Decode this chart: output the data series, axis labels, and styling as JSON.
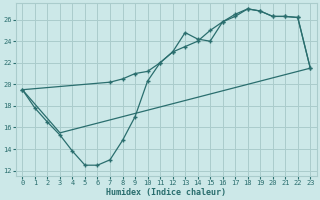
{
  "xlabel": "Humidex (Indice chaleur)",
  "bg_color": "#cce8e8",
  "grid_color": "#aacccc",
  "line_color": "#2a6e6e",
  "xlim": [
    -0.5,
    23.5
  ],
  "ylim": [
    11.5,
    27.5
  ],
  "xticks": [
    0,
    1,
    2,
    3,
    4,
    5,
    6,
    7,
    8,
    9,
    10,
    11,
    12,
    13,
    14,
    15,
    16,
    17,
    18,
    19,
    20,
    21,
    22,
    23
  ],
  "yticks": [
    12,
    14,
    16,
    18,
    20,
    22,
    24,
    26
  ],
  "line1_x": [
    0,
    1,
    2,
    3,
    4,
    5,
    6,
    7,
    8,
    9,
    10,
    11,
    12,
    13,
    14,
    15,
    16,
    17,
    18,
    19,
    20,
    21,
    22,
    23
  ],
  "line1_y": [
    19.5,
    17.8,
    16.5,
    15.3,
    13.8,
    12.5,
    12.5,
    13.0,
    14.8,
    17.0,
    20.3,
    22.0,
    23.0,
    24.8,
    24.2,
    24.0,
    25.8,
    26.3,
    27.0,
    26.8,
    26.3,
    26.3,
    26.2,
    21.5
  ],
  "line2_x": [
    0,
    3,
    23
  ],
  "line2_y": [
    19.5,
    15.5,
    21.5
  ],
  "line3_x": [
    0,
    7,
    8,
    9,
    10,
    11,
    12,
    13,
    14,
    15,
    16,
    17,
    18,
    19,
    20,
    21,
    22,
    23
  ],
  "line3_y": [
    19.5,
    20.2,
    20.5,
    21.0,
    21.2,
    22.0,
    23.0,
    23.5,
    24.0,
    25.0,
    25.8,
    26.5,
    27.0,
    26.8,
    26.3,
    26.3,
    26.2,
    21.5
  ]
}
